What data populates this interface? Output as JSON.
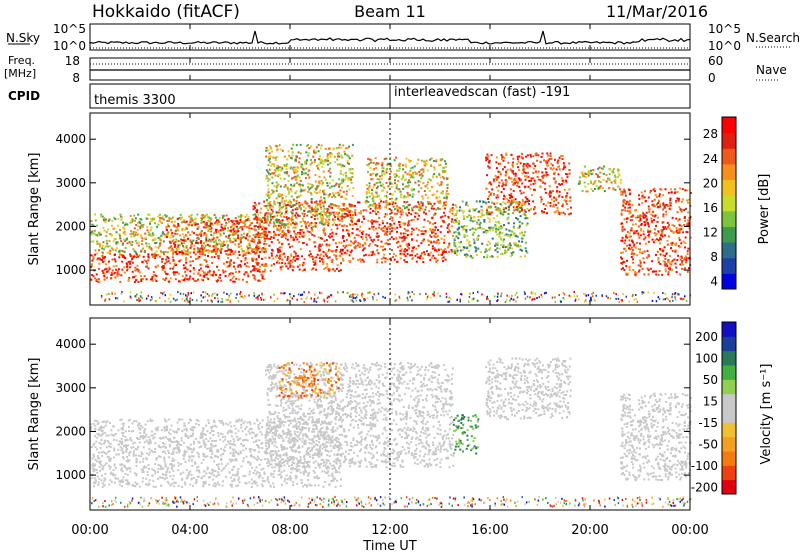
{
  "header": {
    "station": "Hokkaido (fitACF)",
    "beam": "Beam 11",
    "date": "11/Mar/2016"
  },
  "noise_panel": {
    "left_label": "N.Sky",
    "left_ticks": [
      "10^5",
      "10^0"
    ],
    "right_ticks": [
      "10^5",
      "10^0"
    ],
    "right_label": "N.Search"
  },
  "freq_panel": {
    "left_label_1": "Freq.",
    "left_label_2": "[MHz]",
    "left_ticks": [
      "18",
      "8"
    ],
    "right_ticks": [
      "60",
      "0"
    ],
    "right_label": "Nave"
  },
  "cpid_panel": {
    "label": "CPID",
    "segments": [
      {
        "start_hour": 0,
        "end_hour": 12,
        "name": "themis 3300"
      },
      {
        "start_hour": 12,
        "end_hour": 24,
        "name": "interleavedscan (fast) -191"
      }
    ]
  },
  "x_axis": {
    "label": "Time UT",
    "ticks": [
      "00:00",
      "04:00",
      "08:00",
      "12:00",
      "16:00",
      "20:00",
      "00:00"
    ]
  },
  "chart_data": [
    {
      "type": "heatmap",
      "name": "power",
      "xlabel": "Time UT",
      "ylabel": "Slant Range [km]",
      "xlim_hours": [
        0,
        24
      ],
      "ylim_km": [
        200,
        4600
      ],
      "yticks": [
        "1000",
        "2000",
        "3000",
        "4000"
      ],
      "colorbar": {
        "label": "Power [dB]",
        "ticks": [
          "28",
          "24",
          "20",
          "16",
          "12",
          "8",
          "4"
        ],
        "colors": [
          "#0000e0",
          "#1c3fa8",
          "#2f6e8a",
          "#3f9a4e",
          "#7cc43a",
          "#c8dc2a",
          "#f4c020",
          "#f5901a",
          "#f05a18",
          "#e02010",
          "#ff0000"
        ]
      },
      "bands": [
        {
          "start_hour": 0.0,
          "end_hour": 7.0,
          "lo_km": 750,
          "hi_km": 1400,
          "level": "strong"
        },
        {
          "start_hour": 0.0,
          "end_hour": 7.0,
          "lo_km": 1400,
          "hi_km": 2300,
          "level": "moderate"
        },
        {
          "start_hour": 3.0,
          "end_hour": 7.0,
          "lo_km": 1400,
          "hi_km": 2200,
          "level": "strong"
        },
        {
          "start_hour": 6.5,
          "end_hour": 10.0,
          "lo_km": 1000,
          "hi_km": 2600,
          "level": "strong"
        },
        {
          "start_hour": 7.0,
          "end_hour": 10.5,
          "lo_km": 2000,
          "hi_km": 3900,
          "level": "moderate"
        },
        {
          "start_hour": 10.0,
          "end_hour": 14.5,
          "lo_km": 1200,
          "hi_km": 2600,
          "level": "strong"
        },
        {
          "start_hour": 11.0,
          "end_hour": 14.3,
          "lo_km": 2400,
          "hi_km": 3600,
          "level": "moderate"
        },
        {
          "start_hour": 15.8,
          "end_hour": 19.2,
          "lo_km": 2300,
          "hi_km": 3700,
          "level": "strong"
        },
        {
          "start_hour": 14.5,
          "end_hour": 17.5,
          "lo_km": 1300,
          "hi_km": 2600,
          "level": "weak"
        },
        {
          "start_hour": 19.5,
          "end_hour": 21.2,
          "lo_km": 2800,
          "hi_km": 3400,
          "level": "moderate"
        },
        {
          "start_hour": 21.2,
          "end_hour": 24.0,
          "lo_km": 900,
          "hi_km": 2900,
          "level": "strong"
        }
      ]
    },
    {
      "type": "heatmap",
      "name": "velocity",
      "xlabel": "Time UT",
      "ylabel": "Slant Range [km]",
      "xlim_hours": [
        0,
        24
      ],
      "ylim_km": [
        200,
        4600
      ],
      "yticks": [
        "1000",
        "2000",
        "3000",
        "4000"
      ],
      "colorbar": {
        "label": "Velocity [m s⁻¹]",
        "ticks": [
          "200",
          "100",
          "50",
          "15",
          "-15",
          "-50",
          "-100",
          "-200"
        ],
        "colors": [
          "#e00010",
          "#f04010",
          "#f57a10",
          "#f5a020",
          "#f0c030",
          "#c8c8c8",
          "#c8c8c8",
          "#90d050",
          "#40b040",
          "#2a7a5a",
          "#1a3f9a",
          "#1010c0"
        ]
      },
      "bands": [
        {
          "start_hour": 0.0,
          "end_hour": 10.0,
          "lo_km": 750,
          "hi_km": 2300,
          "level": "near-zero"
        },
        {
          "start_hour": 7.0,
          "end_hour": 14.5,
          "lo_km": 1200,
          "hi_km": 3600,
          "level": "near-zero"
        },
        {
          "start_hour": 15.8,
          "end_hour": 19.2,
          "lo_km": 2300,
          "hi_km": 3700,
          "level": "near-zero"
        },
        {
          "start_hour": 21.2,
          "end_hour": 24.0,
          "lo_km": 900,
          "hi_km": 2900,
          "level": "near-zero"
        },
        {
          "start_hour": 14.5,
          "end_hour": 15.5,
          "lo_km": 1500,
          "hi_km": 2400,
          "level": "positive"
        },
        {
          "start_hour": 7.5,
          "end_hour": 10.0,
          "lo_km": 2800,
          "hi_km": 3600,
          "level": "negative"
        }
      ]
    }
  ]
}
